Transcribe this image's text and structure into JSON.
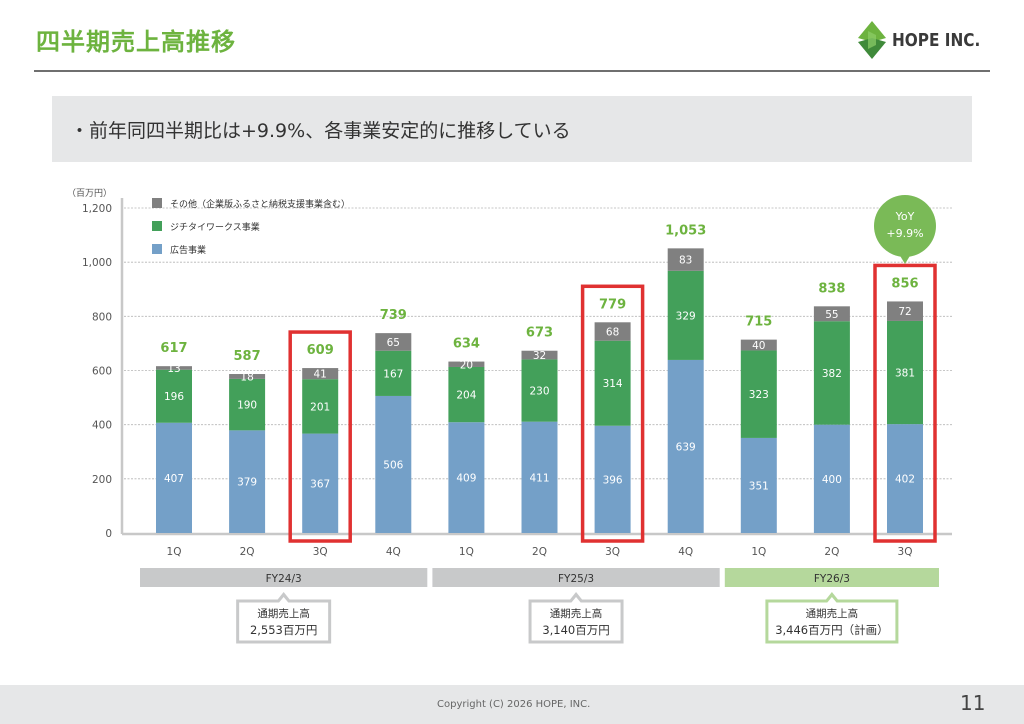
{
  "header": {
    "title": "四半期売上高推移",
    "logo_text": "HOPE INC.",
    "brand_color": "#6db33f"
  },
  "summary": {
    "text": "・前年同四半期比は+9.9%、各事業安定的に推移している"
  },
  "chart_data": {
    "type": "bar",
    "stacked": true,
    "unit_label": "（百万円）",
    "ylim": [
      0,
      1200
    ],
    "yticks": [
      0,
      200,
      400,
      600,
      800,
      1000,
      1200
    ],
    "ytick_labels": [
      "0",
      "200",
      "400",
      "600",
      "800",
      "1,000",
      "1,200"
    ],
    "grid": true,
    "legend_position": "top-left",
    "categories": [
      "1Q",
      "2Q",
      "3Q",
      "4Q",
      "1Q",
      "2Q",
      "3Q",
      "4Q",
      "1Q",
      "2Q",
      "3Q"
    ],
    "series": [
      {
        "name": "広告事業",
        "color": "#74a0c8",
        "values": [
          407,
          379,
          367,
          506,
          409,
          411,
          396,
          639,
          351,
          400,
          402
        ]
      },
      {
        "name": "ジチタイワークス事業",
        "color": "#43a05a",
        "values": [
          196,
          190,
          201,
          167,
          204,
          230,
          314,
          329,
          323,
          382,
          381
        ]
      },
      {
        "name": "その他（企業版ふるさと納税支援事業含む）",
        "color": "#808080",
        "values": [
          13,
          18,
          41,
          65,
          20,
          32,
          68,
          83,
          40,
          55,
          72
        ]
      }
    ],
    "legend_order": [
      2,
      1,
      0
    ],
    "totals": [
      617,
      587,
      609,
      739,
      634,
      673,
      779,
      "1,053",
      715,
      838,
      856
    ],
    "total_label_color": "#6db33f",
    "highlighted_indices": [
      2,
      6,
      10
    ],
    "highlight_color": "#e03131",
    "fiscal_years": [
      {
        "label": "FY24/3",
        "start": 0,
        "end": 3,
        "color": "#c8c9ca",
        "annual_title": "通期売上高",
        "annual_value": "2,553百万円",
        "box_color": "#c8c9ca"
      },
      {
        "label": "FY25/3",
        "start": 4,
        "end": 7,
        "color": "#c8c9ca",
        "annual_title": "通期売上高",
        "annual_value": "3,140百万円",
        "box_color": "#c8c9ca"
      },
      {
        "label": "FY26/3",
        "start": 8,
        "end": 10,
        "color": "#b5d89c",
        "annual_title": "通期売上高",
        "annual_value": "3,446百万円（計画）",
        "box_color": "#b5d89c"
      }
    ],
    "annotation": {
      "line1": "YoY",
      "line2": "+9.9%",
      "target_index": 10,
      "color": "#7aba57"
    }
  },
  "footer": {
    "copyright": "Copyright (C) 2026 HOPE, INC.",
    "page_number": "11"
  }
}
